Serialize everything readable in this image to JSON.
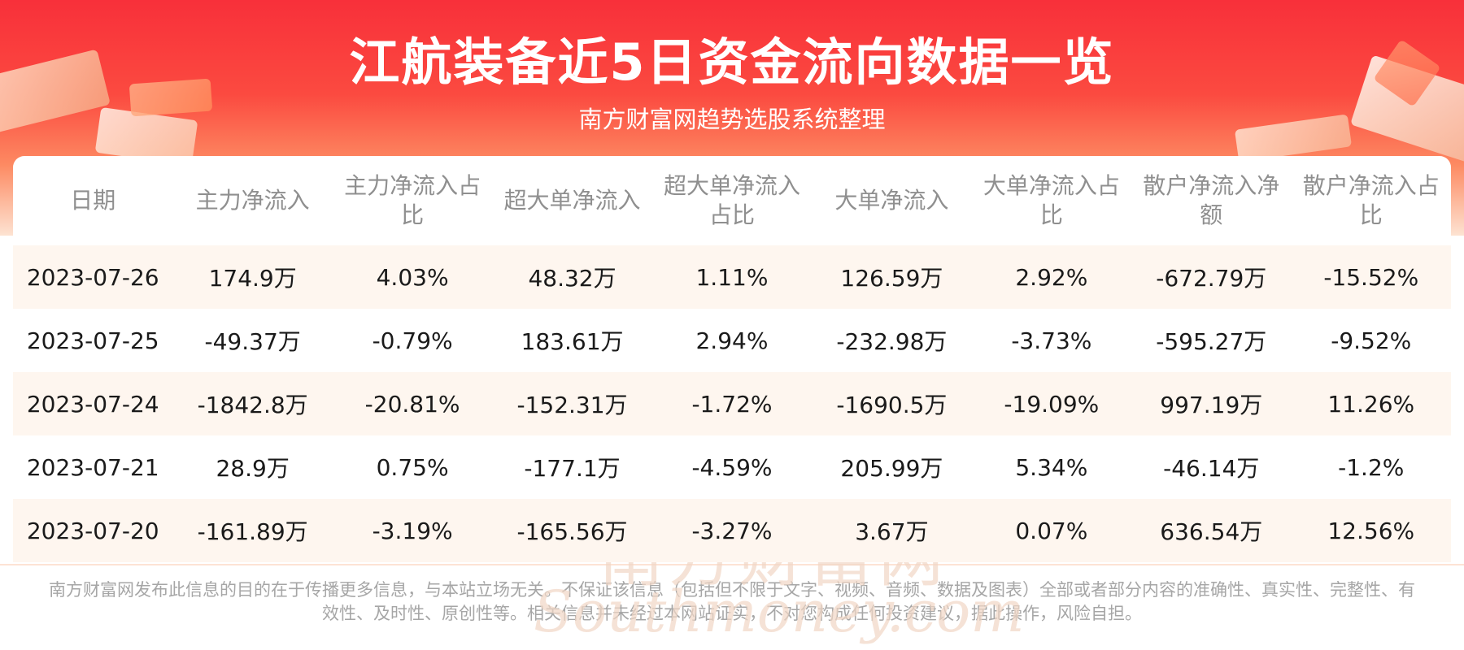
{
  "title": "江航装备近5日资金流向数据一览",
  "subtitle": "南方财富网趋势选股系统整理",
  "headers": [
    "日期",
    "主力净流入",
    "主力净流入占比",
    "超大单净流入",
    "超大单净流入占比",
    "大单净流入",
    "大单净流入占比",
    "散户净流入净额",
    "散户净流入占比"
  ],
  "rows": [
    [
      "2023-07-26",
      "174.9万",
      "4.03%",
      "48.32万",
      "1.11%",
      "126.59万",
      "2.92%",
      "-672.79万",
      "-15.52%"
    ],
    [
      "2023-07-25",
      "-49.37万",
      "-0.79%",
      "183.61万",
      "2.94%",
      "-232.98万",
      "-3.73%",
      "-595.27万",
      "-9.52%"
    ],
    [
      "2023-07-24",
      "-1842.8万",
      "-20.81%",
      "-152.31万",
      "-1.72%",
      "-1690.5万",
      "-19.09%",
      "997.19万",
      "11.26%"
    ],
    [
      "2023-07-21",
      "28.9万",
      "0.75%",
      "-177.1万",
      "-4.59%",
      "205.99万",
      "5.34%",
      "-46.14万",
      "-1.2%"
    ],
    [
      "2023-07-20",
      "-161.89万",
      "-3.19%",
      "-165.56万",
      "-3.27%",
      "3.67万",
      "0.07%",
      "636.54万",
      "12.56%"
    ]
  ],
  "watermark": {
    "cn": "南方财富网",
    "en": "Southmoney.com"
  },
  "disclaimer": "南方财富网发布此信息的目的在于传播更多信息，与本站立场无关。不保证该信息（包括但不限于文字、视频、音频、数据及图表）全部或者部分内容的准确性、真实性、完整性、有效性、及时性、原创性等。相关信息并未经过本网站证实，不对您构成任何投资建议，据此操作，风险自担。",
  "colors": {
    "banner_red": "#f8303a",
    "row_tint": "#fef6ef",
    "header_text": "#8f8f8f"
  }
}
